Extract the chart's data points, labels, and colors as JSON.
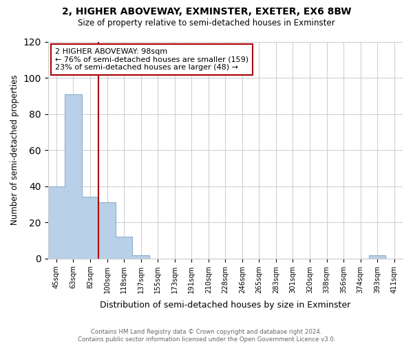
{
  "title_line1": "2, HIGHER ABOVEWAY, EXMINSTER, EXETER, EX6 8BW",
  "title_line2": "Size of property relative to semi-detached houses in Exminster",
  "xlabel": "Distribution of semi-detached houses by size in Exminster",
  "ylabel": "Number of semi-detached properties",
  "footer_line1": "Contains HM Land Registry data © Crown copyright and database right 2024.",
  "footer_line2": "Contains public sector information licensed under the Open Government Licence v3.0.",
  "annotation_line1": "2 HIGHER ABOVEWAY: 98sqm",
  "annotation_line2": "← 76% of semi-detached houses are smaller (159)",
  "annotation_line3": "23% of semi-detached houses are larger (48) →",
  "bar_categories": [
    "45sqm",
    "63sqm",
    "82sqm",
    "100sqm",
    "118sqm",
    "137sqm",
    "155sqm",
    "173sqm",
    "191sqm",
    "210sqm",
    "228sqm",
    "246sqm",
    "265sqm",
    "283sqm",
    "301sqm",
    "320sqm",
    "338sqm",
    "356sqm",
    "374sqm",
    "393sqm",
    "411sqm"
  ],
  "bar_values": [
    40,
    91,
    34,
    31,
    12,
    2,
    0,
    0,
    0,
    0,
    0,
    0,
    0,
    0,
    0,
    0,
    0,
    0,
    0,
    2,
    0
  ],
  "bar_color": "#b8d0e8",
  "bar_edge_color": "#8ab0cc",
  "vline_index": 3,
  "vline_color": "#aa0000",
  "ylim": [
    0,
    120
  ],
  "yticks": [
    0,
    20,
    40,
    60,
    80,
    100,
    120
  ],
  "annotation_box_color": "#aa0000",
  "background_color": "#ffffff",
  "grid_color": "#cccccc"
}
